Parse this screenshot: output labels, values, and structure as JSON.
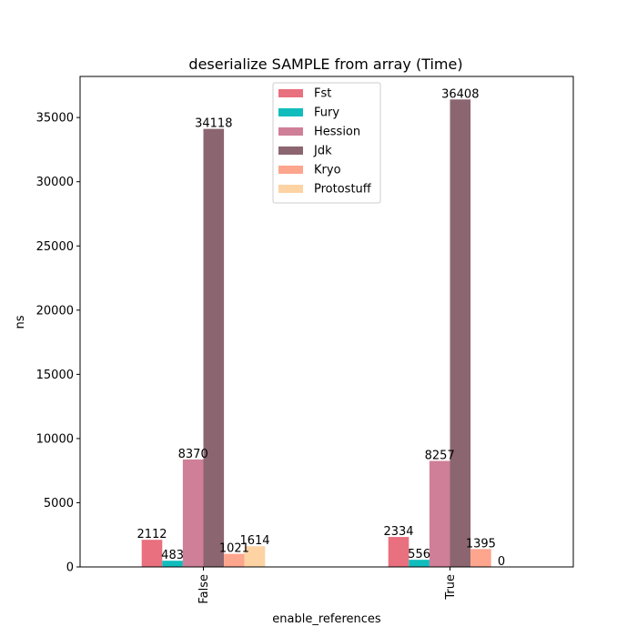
{
  "chart_data": {
    "type": "bar",
    "title": "deserialize SAMPLE from array (Time)",
    "xlabel": "enable_references",
    "ylabel": "ns",
    "categories": [
      "False",
      "True"
    ],
    "ylim": [
      0,
      38200
    ],
    "yticks": [
      0,
      5000,
      10000,
      15000,
      20000,
      25000,
      30000,
      35000
    ],
    "series": [
      {
        "name": "Fst",
        "color": "#e8707f",
        "values": [
          2112,
          2334
        ],
        "labels": [
          "2112",
          "2334"
        ]
      },
      {
        "name": "Fury",
        "color": "#11bcbc",
        "values": [
          483,
          556
        ],
        "labels": [
          "483",
          "556"
        ]
      },
      {
        "name": "Hession",
        "color": "#cf7f98",
        "values": [
          8370,
          8257
        ],
        "labels": [
          "8370",
          "8257"
        ]
      },
      {
        "name": "Jdk",
        "color": "#8b6670",
        "values": [
          34118,
          36408
        ],
        "labels": [
          "34118",
          "36408"
        ]
      },
      {
        "name": "Kryo",
        "color": "#fea58d",
        "values": [
          1021,
          1395
        ],
        "labels": [
          "1021",
          "1395"
        ]
      },
      {
        "name": "Protostuff",
        "color": "#fdd3a4",
        "values": [
          1614,
          0
        ],
        "labels": [
          "1614",
          "0"
        ]
      }
    ],
    "legend": "top-center",
    "grid": false
  }
}
